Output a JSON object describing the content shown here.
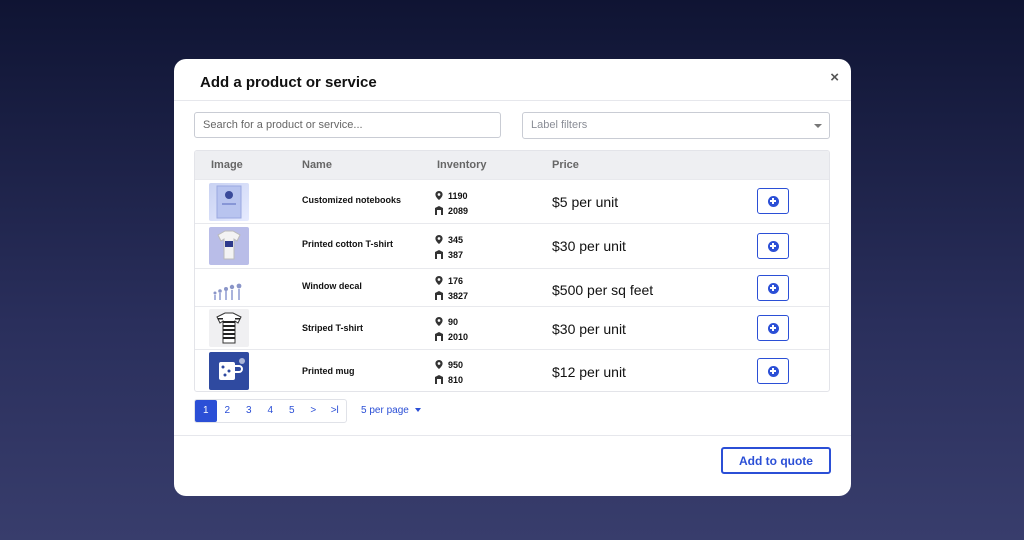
{
  "modal": {
    "title": "Add a product or service",
    "close_glyph": "×",
    "search_placeholder": "Search for a product or service...",
    "label_filter_placeholder": "Label filters",
    "add_to_quote_label": "Add to quote"
  },
  "table": {
    "headers": {
      "image": "Image",
      "name": "Name",
      "inventory": "Inventory",
      "price": "Price"
    },
    "rows": [
      {
        "name": "Customized notebooks",
        "location_qty": "1190",
        "warehouse_qty": "2089",
        "price": "$5 per unit",
        "thumb": "notebook-image"
      },
      {
        "name": "Printed cotton T-shirt",
        "location_qty": "345",
        "warehouse_qty": "387",
        "price": "$30 per unit",
        "thumb": "tshirt-image"
      },
      {
        "name": "Window decal",
        "location_qty": "176",
        "warehouse_qty": "3827",
        "price": "$500 per sq feet",
        "thumb": "decal-image"
      },
      {
        "name": "Striped T-shirt",
        "location_qty": "90",
        "warehouse_qty": "2010",
        "price": "$30 per unit",
        "thumb": "striped-shirt-image"
      },
      {
        "name": "Printed mug",
        "location_qty": "950",
        "warehouse_qty": "810",
        "price": "$12 per unit",
        "thumb": "mug-image"
      }
    ]
  },
  "pagination": {
    "pages": [
      "1",
      "2",
      "3",
      "4",
      "5",
      ">",
      ">l"
    ],
    "active_page": "1",
    "per_page_label": "5 per page"
  },
  "colors": {
    "accent": "#2b4fd6"
  }
}
